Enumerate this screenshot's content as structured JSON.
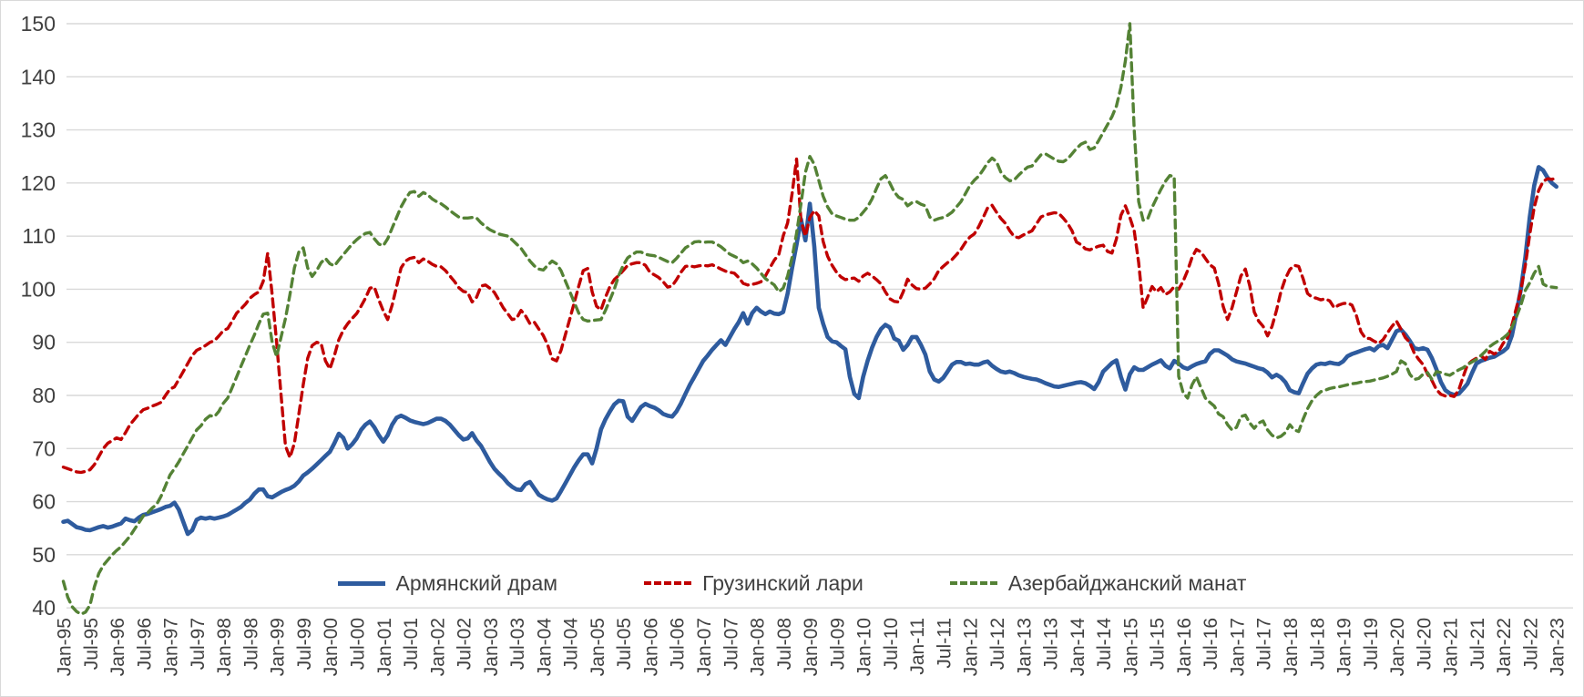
{
  "chart_data": {
    "type": "line",
    "title": "",
    "x_unit": "month",
    "x_start": "Jan-95",
    "x_end": "Jan-23",
    "x_tick_step_months": 6,
    "x_tick_labels": [
      "Jan-95",
      "Jul-95",
      "Jan-96",
      "Jul-96",
      "Jan-97",
      "Jul-97",
      "Jan-98",
      "Jul-98",
      "Jan-99",
      "Jul-99",
      "Jan-00",
      "Jul-00",
      "Jan-01",
      "Jul-01",
      "Jan-02",
      "Jul-02",
      "Jan-03",
      "Jul-03",
      "Jan-04",
      "Jul-04",
      "Jan-05",
      "Jul-05",
      "Jan-06",
      "Jul-06",
      "Jan-07",
      "Jul-07",
      "Jan-08",
      "Jul-08",
      "Jan-09",
      "Jul-09",
      "Jan-10",
      "Jul-10",
      "Jan-11",
      "Jul-11",
      "Jan-12",
      "Jul-12",
      "Jan-13",
      "Jul-13",
      "Jan-14",
      "Jul-14",
      "Jan-15",
      "Jul-15",
      "Jan-16",
      "Jul-16",
      "Jan-17",
      "Jul-17",
      "Jan-18",
      "Jul-18",
      "Jan-19",
      "Jul-19",
      "Jan-20",
      "Jul-20",
      "Jan-21",
      "Jul-21",
      "Jan-22",
      "Jul-22",
      "Jan-23"
    ],
    "ylim": [
      40,
      150
    ],
    "y_ticks": [
      40,
      50,
      60,
      70,
      80,
      90,
      100,
      110,
      120,
      130,
      140,
      150
    ],
    "grid": "horizontal",
    "grid_color": "#d9d9d9",
    "axis_label_color": "#404040",
    "legend_position": "bottom-inside",
    "series": [
      {
        "name": "Армянский драм",
        "color": "#2E5B9E",
        "style": "solid",
        "values": [
          56.2,
          56.4,
          55.8,
          55.2,
          55.0,
          54.7,
          54.6,
          54.9,
          55.2,
          55.4,
          55.1,
          55.3,
          55.6,
          55.9,
          56.8,
          56.5,
          56.3,
          57.0,
          57.5,
          57.7,
          58.0,
          58.3,
          58.6,
          59.0,
          59.2,
          59.8,
          58.5,
          56.2,
          53.9,
          54.6,
          56.6,
          57.0,
          56.8,
          57.0,
          56.8,
          57.0,
          57.2,
          57.5,
          58.0,
          58.5,
          59.0,
          59.8,
          60.4,
          61.5,
          62.3,
          62.3,
          61.0,
          60.8,
          61.3,
          61.8,
          62.2,
          62.5,
          63.0,
          63.8,
          64.9,
          65.5,
          66.2,
          67.0,
          67.8,
          68.6,
          69.4,
          71.0,
          72.8,
          72.0,
          70.0,
          70.8,
          71.9,
          73.5,
          74.5,
          75.1,
          74.0,
          72.5,
          71.3,
          72.5,
          74.5,
          75.8,
          76.2,
          75.8,
          75.3,
          75.0,
          74.8,
          74.6,
          74.8,
          75.2,
          75.6,
          75.6,
          75.2,
          74.5,
          73.5,
          72.5,
          71.7,
          71.9,
          72.9,
          71.5,
          70.5,
          69.0,
          67.5,
          66.2,
          65.3,
          64.5,
          63.5,
          62.8,
          62.3,
          62.2,
          63.3,
          63.7,
          62.5,
          61.3,
          60.8,
          60.4,
          60.2,
          60.6,
          62.0,
          63.5,
          65.0,
          66.5,
          67.8,
          68.9,
          68.9,
          67.2,
          70.0,
          73.6,
          75.5,
          77.0,
          78.3,
          79.0,
          78.9,
          76.0,
          75.2,
          76.5,
          77.8,
          78.4,
          78.0,
          77.7,
          77.2,
          76.5,
          76.2,
          76.0,
          77.0,
          78.5,
          80.3,
          82.0,
          83.5,
          85.0,
          86.5,
          87.5,
          88.6,
          89.5,
          90.4,
          89.5,
          91.0,
          92.5,
          93.8,
          95.5,
          93.5,
          95.5,
          96.5,
          95.8,
          95.3,
          95.8,
          95.4,
          95.3,
          95.7,
          99.2,
          104.0,
          108.4,
          113.2,
          109.2,
          116.1,
          108.0,
          96.5,
          93.5,
          91.0,
          90.2,
          90.0,
          89.3,
          88.7,
          83.5,
          80.3,
          79.5,
          83.5,
          86.5,
          89.0,
          91.0,
          92.5,
          93.3,
          92.8,
          90.7,
          90.3,
          88.6,
          89.5,
          91.0,
          91.0,
          89.5,
          87.7,
          84.5,
          83.0,
          82.6,
          83.3,
          84.5,
          85.8,
          86.3,
          86.3,
          85.9,
          86.0,
          85.8,
          85.8,
          86.2,
          86.4,
          85.6,
          85.0,
          84.5,
          84.3,
          84.5,
          84.2,
          83.8,
          83.5,
          83.3,
          83.1,
          83.0,
          82.7,
          82.3,
          82.0,
          81.7,
          81.6,
          81.8,
          82.0,
          82.2,
          82.4,
          82.5,
          82.3,
          81.8,
          81.2,
          82.5,
          84.5,
          85.3,
          86.1,
          86.6,
          83.5,
          81.1,
          84.0,
          85.3,
          84.8,
          84.8,
          85.3,
          85.8,
          86.2,
          86.6,
          85.6,
          85.1,
          86.5,
          86.0,
          85.3,
          85.0,
          85.5,
          85.9,
          86.2,
          86.4,
          87.8,
          88.5,
          88.5,
          88.0,
          87.5,
          86.8,
          86.4,
          86.2,
          86.0,
          85.7,
          85.4,
          85.1,
          84.9,
          84.3,
          83.4,
          83.9,
          83.4,
          82.5,
          81.0,
          80.6,
          80.4,
          82.3,
          84.1,
          85.1,
          85.8,
          86.0,
          85.9,
          86.2,
          86.0,
          85.9,
          86.4,
          87.4,
          87.8,
          88.1,
          88.4,
          88.7,
          88.9,
          88.5,
          89.3,
          89.5,
          88.9,
          90.5,
          92.1,
          92.4,
          91.5,
          90.3,
          88.9,
          88.7,
          88.9,
          88.6,
          87.0,
          84.9,
          82.5,
          81.0,
          80.4,
          80.1,
          80.3,
          81.2,
          82.2,
          84.2,
          86.0,
          86.5,
          86.8,
          87.1,
          87.3,
          87.8,
          88.3,
          89.0,
          91.3,
          95.5,
          100.0,
          106.0,
          113.5,
          119.5,
          123.0,
          122.4,
          121.0,
          120.0,
          119.3
        ]
      },
      {
        "name": "Грузинский лари",
        "color": "#C00000",
        "style": "dashed",
        "values": [
          66.5,
          66.2,
          65.9,
          65.6,
          65.5,
          65.7,
          66.0,
          67.0,
          68.5,
          70.0,
          71.0,
          71.5,
          72.0,
          71.7,
          73.0,
          74.5,
          75.5,
          76.5,
          77.3,
          77.6,
          78.0,
          78.3,
          78.7,
          80.0,
          81.2,
          81.6,
          83.0,
          84.5,
          86.0,
          87.5,
          88.5,
          88.9,
          89.4,
          90.0,
          90.3,
          91.2,
          92.2,
          92.6,
          94.0,
          95.5,
          96.3,
          97.2,
          98.3,
          99.0,
          99.5,
          101.5,
          106.8,
          99.0,
          90.0,
          80.0,
          70.5,
          68.3,
          71.0,
          76.5,
          82.0,
          87.0,
          89.4,
          90.0,
          89.8,
          86.5,
          85.0,
          87.5,
          90.5,
          92.3,
          93.5,
          94.5,
          95.4,
          96.8,
          98.3,
          100.2,
          100.4,
          98.0,
          95.9,
          94.3,
          97.0,
          100.5,
          104.0,
          105.3,
          105.8,
          106.0,
          105.0,
          105.7,
          105.3,
          104.7,
          104.3,
          104.2,
          103.5,
          102.5,
          101.5,
          100.3,
          99.6,
          99.4,
          97.6,
          98.5,
          100.6,
          100.8,
          100.2,
          99.4,
          98.0,
          96.5,
          95.4,
          94.3,
          94.5,
          96.0,
          95.0,
          93.5,
          93.8,
          92.5,
          91.3,
          89.5,
          86.9,
          86.5,
          88.5,
          91.5,
          94.5,
          97.5,
          100.6,
          103.5,
          103.9,
          99.5,
          96.8,
          96.1,
          98.5,
          100.5,
          101.8,
          102.6,
          103.5,
          104.5,
          104.8,
          105.0,
          105.0,
          104.5,
          103.2,
          102.7,
          102.2,
          101.4,
          100.4,
          100.6,
          101.8,
          103.2,
          104.3,
          104.4,
          104.2,
          104.4,
          104.5,
          104.4,
          104.6,
          104.2,
          103.8,
          103.4,
          103.2,
          103.0,
          102.2,
          101.1,
          100.8,
          100.9,
          101.1,
          101.4,
          102.5,
          104.0,
          105.5,
          106.5,
          110.0,
          112.5,
          118.0,
          124.5,
          113.0,
          110.0,
          113.5,
          114.8,
          113.8,
          109.0,
          106.2,
          104.5,
          103.2,
          102.3,
          101.8,
          102.0,
          102.1,
          101.5,
          102.5,
          103.0,
          102.5,
          101.8,
          101.0,
          99.5,
          98.2,
          97.7,
          97.6,
          99.5,
          101.9,
          100.8,
          100.1,
          100.0,
          100.2,
          101.0,
          102.0,
          103.5,
          104.3,
          105.0,
          105.6,
          106.5,
          107.5,
          108.8,
          109.8,
          110.4,
          111.8,
          113.5,
          115.3,
          115.8,
          114.5,
          113.3,
          112.4,
          111.0,
          109.9,
          109.7,
          110.2,
          110.6,
          111.0,
          112.3,
          113.6,
          114.0,
          114.2,
          114.4,
          114.3,
          113.4,
          112.4,
          111.0,
          108.9,
          108.4,
          107.6,
          107.4,
          107.8,
          108.1,
          108.3,
          107.1,
          106.8,
          109.5,
          113.9,
          115.7,
          113.5,
          111.0,
          105.0,
          96.5,
          98.5,
          100.5,
          99.5,
          100.3,
          99.0,
          99.5,
          100.5,
          100.0,
          101.5,
          103.5,
          106.0,
          107.5,
          107.0,
          105.8,
          104.6,
          104.0,
          101.0,
          96.8,
          94.3,
          96.5,
          99.5,
          102.5,
          103.8,
          100.6,
          95.7,
          94.0,
          93.0,
          91.2,
          93.0,
          96.0,
          99.5,
          102.0,
          103.7,
          104.5,
          104.3,
          102.0,
          99.2,
          98.5,
          98.3,
          98.0,
          98.2,
          97.8,
          96.5,
          97.0,
          97.3,
          97.4,
          97.0,
          95.0,
          92.0,
          90.8,
          90.7,
          90.2,
          89.8,
          90.5,
          91.8,
          93.0,
          94.0,
          92.5,
          90.9,
          90.0,
          88.0,
          86.8,
          85.8,
          84.0,
          82.8,
          81.1,
          80.2,
          79.9,
          80.0,
          79.8,
          81.0,
          83.5,
          85.8,
          86.5,
          87.0,
          87.5,
          86.8,
          88.3,
          87.8,
          88.3,
          89.8,
          90.8,
          93.3,
          96.5,
          99.8,
          104.5,
          110.3,
          115.4,
          118.6,
          120.3,
          120.8,
          120.7,
          120.9
        ]
      },
      {
        "name": "Азербайджанский манат",
        "color": "#548235",
        "style": "dashed",
        "values": [
          45.0,
          42.0,
          40.2,
          39.3,
          38.8,
          39.2,
          40.5,
          44.0,
          46.5,
          48.0,
          49.0,
          50.0,
          50.8,
          51.5,
          52.5,
          53.5,
          54.8,
          56.0,
          57.3,
          57.9,
          58.8,
          59.5,
          61.0,
          63.0,
          65.0,
          66.2,
          67.5,
          69.0,
          70.5,
          72.0,
          73.5,
          74.3,
          75.5,
          76.2,
          76.0,
          77.0,
          78.5,
          79.5,
          81.5,
          83.5,
          85.5,
          87.5,
          89.5,
          91.4,
          93.5,
          95.3,
          95.5,
          90.0,
          87.3,
          91.0,
          94.5,
          99.0,
          104.0,
          107.0,
          107.8,
          104.0,
          102.4,
          103.5,
          105.0,
          105.8,
          104.8,
          104.4,
          105.5,
          106.5,
          107.5,
          108.5,
          109.3,
          110.0,
          110.5,
          110.7,
          109.5,
          108.5,
          108.2,
          109.5,
          111.5,
          113.5,
          115.5,
          117.0,
          118.2,
          118.4,
          117.5,
          118.2,
          117.8,
          117.0,
          116.5,
          116.1,
          115.5,
          114.8,
          114.2,
          113.6,
          113.4,
          113.4,
          113.5,
          113.4,
          112.5,
          111.8,
          111.2,
          110.8,
          110.4,
          110.2,
          110.0,
          109.3,
          108.5,
          107.7,
          106.5,
          105.3,
          104.4,
          103.8,
          103.6,
          104.5,
          105.3,
          104.8,
          103.5,
          101.5,
          99.5,
          97.5,
          95.5,
          94.3,
          94.0,
          94.1,
          94.2,
          94.3,
          96.0,
          98.0,
          100.0,
          102.6,
          104.5,
          105.9,
          106.5,
          107.0,
          107.0,
          106.6,
          106.4,
          106.3,
          106.0,
          105.6,
          105.2,
          105.0,
          105.8,
          106.8,
          107.8,
          108.3,
          108.9,
          109.0,
          108.8,
          108.9,
          108.9,
          108.5,
          108.0,
          107.3,
          106.6,
          106.2,
          105.8,
          105.0,
          105.3,
          104.8,
          104.0,
          103.0,
          102.0,
          101.4,
          100.8,
          99.5,
          100.2,
          102.5,
          106.0,
          110.5,
          116.0,
          122.0,
          125.0,
          123.5,
          120.5,
          117.5,
          115.5,
          114.2,
          113.8,
          113.5,
          113.2,
          113.0,
          113.0,
          113.5,
          114.5,
          115.5,
          117.0,
          119.0,
          120.8,
          121.4,
          120.0,
          118.3,
          117.3,
          116.9,
          115.7,
          116.3,
          116.5,
          116.0,
          115.7,
          113.6,
          113.0,
          113.3,
          113.5,
          113.9,
          114.5,
          115.5,
          116.5,
          118.0,
          119.5,
          120.5,
          121.3,
          122.5,
          123.8,
          124.7,
          124.0,
          122.0,
          121.0,
          120.4,
          120.6,
          121.5,
          122.3,
          123.0,
          123.2,
          124.3,
          125.3,
          125.5,
          125.0,
          124.5,
          124.1,
          124.0,
          124.5,
          125.5,
          126.5,
          127.3,
          127.7,
          126.3,
          126.6,
          128.0,
          129.5,
          131.0,
          132.5,
          134.5,
          138.0,
          143.0,
          150.0,
          130.0,
          116.5,
          113.0,
          113.2,
          115.4,
          117.1,
          118.8,
          120.3,
          121.4,
          121.2,
          83.6,
          80.5,
          79.5,
          82.0,
          83.5,
          81.5,
          79.5,
          78.7,
          78.0,
          76.5,
          76.0,
          74.5,
          73.5,
          74.0,
          76.0,
          76.3,
          74.8,
          73.8,
          74.8,
          75.2,
          73.5,
          72.5,
          72.0,
          72.3,
          73.0,
          74.5,
          73.5,
          73.2,
          75.5,
          77.5,
          79.0,
          80.0,
          80.7,
          81.0,
          81.3,
          81.5,
          81.6,
          81.8,
          82.0,
          82.2,
          82.3,
          82.5,
          82.6,
          82.7,
          82.9,
          83.1,
          83.3,
          83.6,
          84.0,
          84.5,
          86.5,
          86.0,
          84.0,
          83.0,
          83.2,
          84.0,
          84.3,
          83.0,
          84.5,
          84.3,
          84.0,
          83.8,
          84.3,
          84.8,
          85.2,
          85.8,
          86.3,
          86.8,
          87.5,
          88.3,
          89.2,
          89.8,
          90.3,
          90.8,
          91.5,
          92.8,
          94.8,
          97.0,
          99.8,
          101.2,
          103.0,
          104.3,
          101.0,
          100.5,
          100.4,
          100.3
        ]
      }
    ]
  }
}
